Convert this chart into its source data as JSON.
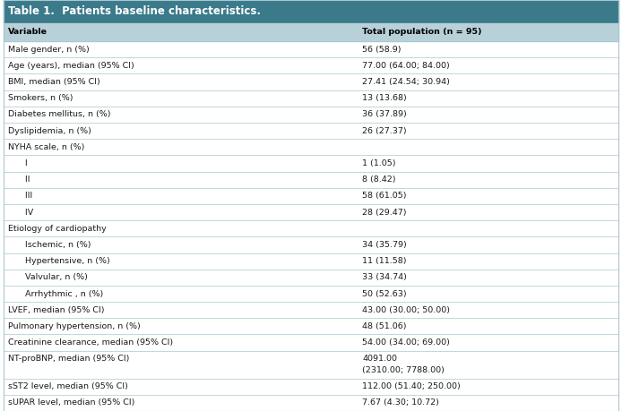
{
  "title": "Table 1.  Patients baseline characteristics.",
  "title_bg": "#3a7a8a",
  "title_color": "#ffffff",
  "header_bg": "#b8d0d8",
  "header_color": "#000000",
  "col1_header": "Variable",
  "col2_header": "Total population (n = 95)",
  "rows": [
    {
      "label": "Male gender, n (%)",
      "value": "56 (58.9)",
      "indent": false,
      "section": false,
      "value_multiline": false
    },
    {
      "label": "Age (years), median (95% CI)",
      "value": "77.00 (64.00; 84.00)",
      "indent": false,
      "section": false,
      "value_multiline": false
    },
    {
      "label": "BMI, median (95% CI)",
      "value": "27.41 (24.54; 30.94)",
      "indent": false,
      "section": false,
      "value_multiline": false
    },
    {
      "label": "Smokers, n (%)",
      "value": "13 (13.68)",
      "indent": false,
      "section": false,
      "value_multiline": false
    },
    {
      "label": "Diabetes mellitus, n (%)",
      "value": "36 (37.89)",
      "indent": false,
      "section": false,
      "value_multiline": false
    },
    {
      "label": "Dyslipidemia, n (%)",
      "value": "26 (27.37)",
      "indent": false,
      "section": false,
      "value_multiline": false
    },
    {
      "label": "NYHA scale, n (%)",
      "value": "",
      "indent": false,
      "section": true,
      "value_multiline": false
    },
    {
      "label": "  I",
      "value": "1 (1.05)",
      "indent": true,
      "section": false,
      "value_multiline": false
    },
    {
      "label": "  II",
      "value": "8 (8.42)",
      "indent": true,
      "section": false,
      "value_multiline": false
    },
    {
      "label": "  III",
      "value": "58 (61.05)",
      "indent": true,
      "section": false,
      "value_multiline": false
    },
    {
      "label": "  IV",
      "value": "28 (29.47)",
      "indent": true,
      "section": false,
      "value_multiline": false
    },
    {
      "label": "Etiology of cardiopathy",
      "value": "",
      "indent": false,
      "section": true,
      "value_multiline": false
    },
    {
      "label": "  Ischemic, n (%)",
      "value": "34 (35.79)",
      "indent": true,
      "section": false,
      "value_multiline": false
    },
    {
      "label": "  Hypertensive, n (%)",
      "value": "11 (11.58)",
      "indent": true,
      "section": false,
      "value_multiline": false
    },
    {
      "label": "  Valvular, n (%)",
      "value": "33 (34.74)",
      "indent": true,
      "section": false,
      "value_multiline": false
    },
    {
      "label": "  Arrhythmic , n (%)",
      "value": "50 (52.63)",
      "indent": true,
      "section": false,
      "value_multiline": false
    },
    {
      "label": "LVEF, median (95% CI)",
      "value": "43.00 (30.00; 50.00)",
      "indent": false,
      "section": false,
      "value_multiline": false
    },
    {
      "label": "Pulmonary hypertension, n (%)",
      "value": "48 (51.06)",
      "indent": false,
      "section": false,
      "value_multiline": false
    },
    {
      "label": "Creatinine clearance, median (95% CI)",
      "value": "54.00 (34.00; 69.00)",
      "indent": false,
      "section": false,
      "value_multiline": false
    },
    {
      "label": "NT-proBNP, median (95% CI)",
      "value": "4091.00\n(2310.00; 7788.00)",
      "indent": false,
      "section": false,
      "value_multiline": true
    },
    {
      "label": "sST2 level, median (95% CI)",
      "value": "112.00 (51.40; 250.00)",
      "indent": false,
      "section": false,
      "value_multiline": false
    },
    {
      "label": "sUPAR level, median (95% CI)",
      "value": "7.67 (4.30; 10.72)",
      "indent": false,
      "section": false,
      "value_multiline": false
    }
  ],
  "line_color": "#a8c8d0",
  "bg_color": "#ffffff",
  "text_color": "#1a1a1a",
  "font_size": 6.8,
  "header_font_size": 6.8,
  "title_font_size": 8.5,
  "col_split": 0.575
}
